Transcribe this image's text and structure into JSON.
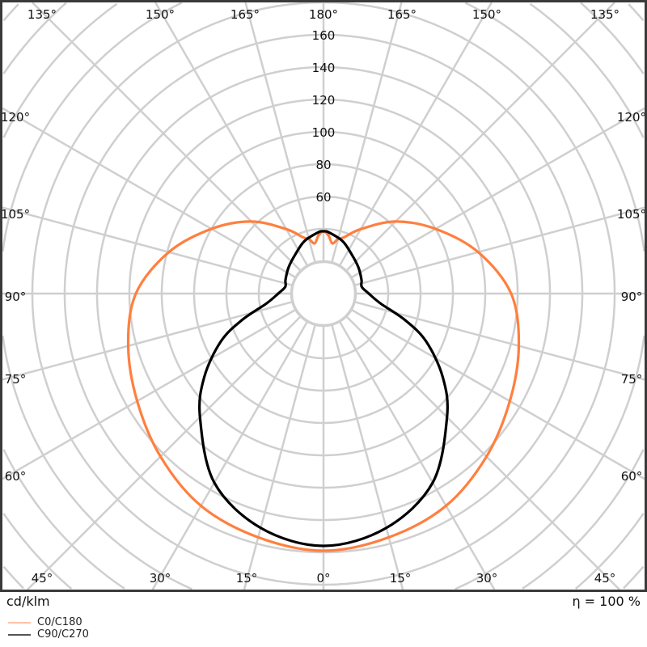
{
  "chart_data": {
    "type": "polar",
    "unit_label": "cd/klm",
    "efficiency_label": "η = 100 %",
    "angle_labels": [
      "135°",
      "150°",
      "165°",
      "180°",
      "165°",
      "150°",
      "135°",
      "120°",
      "105°",
      "90°",
      "75°",
      "60°",
      "120°",
      "105°",
      "90°",
      "75°",
      "60°",
      "45°",
      "30°",
      "15°",
      "0°",
      "15°",
      "30°",
      "45°"
    ],
    "radial_ticks": [
      60,
      80,
      100,
      120,
      140,
      160
    ],
    "radial_grid_step": 20,
    "angle_grid_step_deg": 15,
    "series": [
      {
        "name": "C0/C180",
        "color": "#ff7f3f",
        "gamma": [
          0,
          15,
          30,
          45,
          60,
          75,
          90,
          105,
          120,
          135,
          150,
          160,
          165,
          170,
          175,
          180
        ],
        "values": [
          159,
          156,
          151.5,
          142.5,
          133,
          125,
          116,
          99,
          80,
          63,
          46,
          37,
          35,
          31.5,
          36,
          38.5
        ]
      },
      {
        "name": "C90/C270",
        "color": "#000000",
        "gamma": [
          0,
          15,
          30,
          45,
          55,
          65,
          72,
          80,
          90,
          100,
          110,
          127,
          145,
          160,
          175,
          180
        ],
        "values": [
          156,
          150,
          135,
          108,
          90,
          70,
          53,
          36,
          28,
          24,
          25,
          27,
          30,
          34.5,
          38,
          38.5
        ]
      }
    ]
  }
}
